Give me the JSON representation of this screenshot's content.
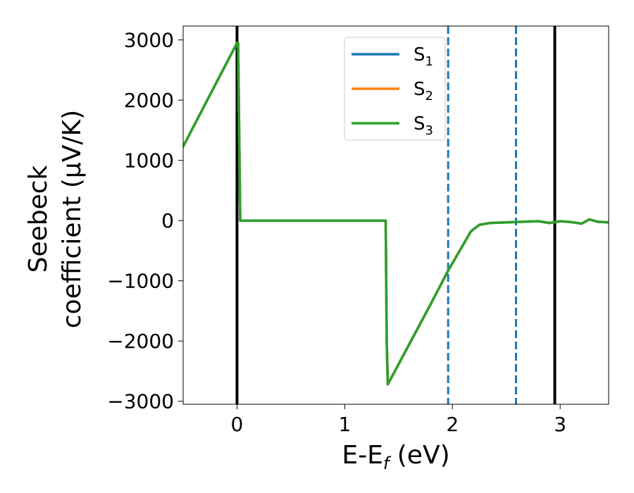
{
  "chart_data": {
    "type": "line",
    "xlabel": {
      "main": "E-E",
      "sub": "f",
      "tail": " (eV)"
    },
    "ylabel": {
      "line1": "Seebeck",
      "line2": "coefficient  (μV/K)"
    },
    "xlim": [
      -0.5,
      3.45
    ],
    "ylim": [
      -3050,
      3230
    ],
    "xticks": [
      0,
      1,
      2,
      3
    ],
    "xtick_labels": [
      "0",
      "1",
      "2",
      "3"
    ],
    "yticks": [
      -3000,
      -2000,
      -1000,
      0,
      1000,
      2000,
      3000
    ],
    "ytick_labels": [
      "−3000",
      "−2000",
      "−1000",
      "0",
      "1000",
      "2000",
      "3000"
    ],
    "legend_position": "top-center",
    "grid": false,
    "vlines": [
      {
        "x": 0.0,
        "style": "solid",
        "color": "#000000"
      },
      {
        "x": 1.96,
        "style": "dashed",
        "color": "#1f77b4"
      },
      {
        "x": 2.59,
        "style": "dashed",
        "color": "#1f77b4"
      },
      {
        "x": 2.95,
        "style": "solid",
        "color": "#000000"
      }
    ],
    "series": [
      {
        "name": "S",
        "sub": "1",
        "color": "#1f77b4",
        "x": [
          -0.5,
          0.0,
          0.01,
          0.03,
          1.38,
          1.39,
          1.4,
          1.6,
          1.8,
          1.96,
          2.1,
          2.17,
          2.25,
          2.35,
          2.5,
          2.65,
          2.8,
          2.9,
          3.0,
          3.1,
          3.2,
          3.27,
          3.35,
          3.45
        ],
        "y": [
          1230,
          2950,
          2950,
          0,
          0,
          -2000,
          -2720,
          -2050,
          -1380,
          -830,
          -400,
          -180,
          -70,
          -40,
          -30,
          -20,
          -10,
          -40,
          -10,
          -25,
          -50,
          20,
          -20,
          -30
        ]
      },
      {
        "name": "S",
        "sub": "2",
        "color": "#ff7f0e",
        "x": [
          -0.5,
          0.0,
          0.01,
          0.03,
          1.38,
          1.39,
          1.4,
          1.6,
          1.8,
          1.96,
          2.1,
          2.17,
          2.25,
          2.35,
          2.5,
          2.65,
          2.8,
          2.9,
          3.0,
          3.1,
          3.2,
          3.27,
          3.35,
          3.45
        ],
        "y": [
          1230,
          2950,
          2950,
          0,
          0,
          -2000,
          -2720,
          -2050,
          -1380,
          -830,
          -400,
          -180,
          -70,
          -40,
          -30,
          -20,
          -10,
          -40,
          -10,
          -25,
          -50,
          20,
          -20,
          -30
        ]
      },
      {
        "name": "S",
        "sub": "3",
        "color": "#2ca02c",
        "x": [
          -0.5,
          0.0,
          0.01,
          0.03,
          1.38,
          1.39,
          1.4,
          1.6,
          1.8,
          1.96,
          2.1,
          2.17,
          2.25,
          2.35,
          2.5,
          2.65,
          2.8,
          2.9,
          3.0,
          3.1,
          3.2,
          3.27,
          3.35,
          3.45
        ],
        "y": [
          1230,
          2950,
          2950,
          0,
          0,
          -2000,
          -2720,
          -2050,
          -1380,
          -830,
          -400,
          -180,
          -70,
          -40,
          -30,
          -20,
          -10,
          -40,
          -10,
          -25,
          -50,
          20,
          -20,
          -30
        ]
      }
    ]
  }
}
